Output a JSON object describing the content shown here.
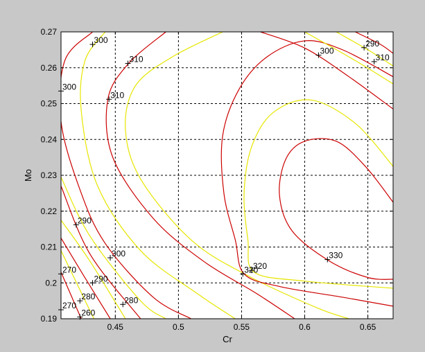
{
  "figure": {
    "background": "#c8c8c8",
    "plot_background": "#ffffff"
  },
  "chart_data": {
    "type": "contour",
    "title": "",
    "xlabel": "Cr",
    "ylabel": "Mo",
    "xlim": [
      0.407,
      0.67
    ],
    "ylim": [
      0.19,
      0.27
    ],
    "xticks": [
      0.45,
      0.5,
      0.55,
      0.6,
      0.65
    ],
    "xtick_labels": [
      "0.45",
      "0.5",
      "0.55",
      "0.6",
      "0.65"
    ],
    "yticks": [
      0.19,
      0.2,
      0.21,
      0.22,
      0.23,
      0.24,
      0.25,
      0.26,
      0.27
    ],
    "ytick_labels": [
      "0.19",
      "0.2",
      "0.21",
      "0.22",
      "0.23",
      "0.24",
      "0.25",
      "0.26",
      "0.27"
    ],
    "grid": true,
    "grid_style": "dashed",
    "colors": {
      "red_levels": "#cc0000",
      "yellow_levels": "#e6e600"
    },
    "series": [
      {
        "level": "270",
        "color": "#cc0000",
        "points": [
          [
            0.407,
            0.203
          ],
          [
            0.423,
            0.19
          ]
        ]
      },
      {
        "level": "",
        "color": "#e6e600",
        "points": [
          [
            0.407,
            0.209
          ],
          [
            0.433,
            0.19
          ]
        ]
      },
      {
        "level": "280",
        "color": "#cc0000",
        "points": [
          [
            0.407,
            0.2125
          ],
          [
            0.425,
            0.202
          ],
          [
            0.446,
            0.19
          ]
        ]
      },
      {
        "level": "",
        "color": "#e6e600",
        "points": [
          [
            0.407,
            0.2175
          ],
          [
            0.43,
            0.206
          ],
          [
            0.458,
            0.19
          ]
        ]
      },
      {
        "level": "290",
        "color": "#cc0000",
        "points": [
          [
            0.407,
            0.227
          ],
          [
            0.43,
            0.208
          ],
          [
            0.47,
            0.19
          ]
        ]
      },
      {
        "level": "",
        "color": "#e6e600",
        "points": [
          [
            0.407,
            0.2295
          ],
          [
            0.43,
            0.213
          ],
          [
            0.47,
            0.195
          ],
          [
            0.49,
            0.19
          ]
        ]
      },
      {
        "level": "300",
        "color": "#cc0000",
        "points": [
          [
            0.432,
            0.27
          ],
          [
            0.41,
            0.262
          ],
          [
            0.407,
            0.245
          ],
          [
            0.422,
            0.226
          ],
          [
            0.442,
            0.211
          ],
          [
            0.48,
            0.196
          ],
          [
            0.51,
            0.19
          ]
        ]
      },
      {
        "level": "",
        "color": "#e6e600",
        "points": [
          [
            0.442,
            0.27
          ],
          [
            0.426,
            0.262
          ],
          [
            0.423,
            0.248
          ],
          [
            0.436,
            0.227
          ],
          [
            0.47,
            0.209
          ],
          [
            0.515,
            0.197
          ],
          [
            0.545,
            0.19
          ]
        ]
      },
      {
        "level": "310",
        "color": "#cc0000",
        "points": [
          [
            0.49,
            0.27
          ],
          [
            0.46,
            0.261
          ],
          [
            0.444,
            0.251
          ],
          [
            0.448,
            0.235
          ],
          [
            0.48,
            0.218
          ],
          [
            0.52,
            0.206
          ],
          [
            0.562,
            0.197
          ],
          [
            0.592,
            0.19
          ]
        ]
      },
      {
        "level": "",
        "color": "#e6e600",
        "points": [
          [
            0.535,
            0.27
          ],
          [
            0.495,
            0.263
          ],
          [
            0.466,
            0.255
          ],
          [
            0.458,
            0.243
          ],
          [
            0.47,
            0.229
          ],
          [
            0.51,
            0.212
          ],
          [
            0.555,
            0.202
          ],
          [
            0.61,
            0.193
          ],
          [
            0.635,
            0.19
          ]
        ]
      },
      {
        "level": "320",
        "color": "#cc0000",
        "points": [
          [
            0.67,
            0.2575
          ],
          [
            0.63,
            0.265
          ],
          [
            0.6,
            0.2675
          ],
          [
            0.57,
            0.263
          ],
          [
            0.548,
            0.254
          ],
          [
            0.535,
            0.241
          ],
          [
            0.536,
            0.225
          ],
          [
            0.545,
            0.212
          ],
          [
            0.552,
            0.2025
          ],
          [
            0.58,
            0.199
          ],
          [
            0.63,
            0.196
          ],
          [
            0.67,
            0.1935
          ]
        ]
      },
      {
        "level": "",
        "color": "#e6e600",
        "points": [
          [
            0.67,
            0.2325
          ],
          [
            0.64,
            0.2445
          ],
          [
            0.605,
            0.251
          ],
          [
            0.575,
            0.2475
          ],
          [
            0.558,
            0.238
          ],
          [
            0.552,
            0.225
          ],
          [
            0.555,
            0.212
          ],
          [
            0.56,
            0.203
          ],
          [
            0.6,
            0.2005
          ],
          [
            0.67,
            0.1985
          ]
        ]
      },
      {
        "level": "330",
        "color": "#cc0000",
        "points": [
          [
            0.67,
            0.2225
          ],
          [
            0.648,
            0.2325
          ],
          [
            0.625,
            0.2395
          ],
          [
            0.6,
            0.2395
          ],
          [
            0.585,
            0.2345
          ],
          [
            0.58,
            0.2245
          ],
          [
            0.59,
            0.2145
          ],
          [
            0.62,
            0.206
          ],
          [
            0.65,
            0.2015
          ],
          [
            0.67,
            0.201
          ]
        ]
      },
      {
        "level": "",
        "color": "#e6e600",
        "points": [
          [
            0.6,
            0.27
          ],
          [
            0.64,
            0.262
          ],
          [
            0.67,
            0.2555
          ]
        ]
      },
      {
        "level": "300",
        "color": "#cc0000",
        "points": [
          [
            0.565,
            0.27
          ],
          [
            0.6,
            0.2655
          ],
          [
            0.635,
            0.2575
          ],
          [
            0.67,
            0.2485
          ]
        ]
      },
      {
        "level": "",
        "color": "#e6e600",
        "points": [
          [
            0.625,
            0.27
          ],
          [
            0.65,
            0.265
          ],
          [
            0.67,
            0.2605
          ]
        ]
      },
      {
        "level": "310",
        "color": "#cc0000",
        "points": [
          [
            0.64,
            0.27
          ],
          [
            0.66,
            0.2665
          ],
          [
            0.67,
            0.264
          ]
        ]
      }
    ],
    "labels": [
      {
        "text": "300",
        "x": 0.432,
        "y": 0.2665
      },
      {
        "text": "310",
        "x": 0.46,
        "y": 0.2612
      },
      {
        "text": "300",
        "x": 0.407,
        "y": 0.2535
      },
      {
        "text": "310",
        "x": 0.445,
        "y": 0.2512
      },
      {
        "text": "300",
        "x": 0.611,
        "y": 0.2635
      },
      {
        "text": "290",
        "x": 0.647,
        "y": 0.2656
      },
      {
        "text": "310",
        "x": 0.655,
        "y": 0.2617
      },
      {
        "text": "290",
        "x": 0.419,
        "y": 0.2162
      },
      {
        "text": "300",
        "x": 0.446,
        "y": 0.207
      },
      {
        "text": "270",
        "x": 0.407,
        "y": 0.2025
      },
      {
        "text": "290",
        "x": 0.432,
        "y": 0.2
      },
      {
        "text": "280",
        "x": 0.422,
        "y": 0.195
      },
      {
        "text": "280",
        "x": 0.456,
        "y": 0.194
      },
      {
        "text": "270",
        "x": 0.407,
        "y": 0.1925
      },
      {
        "text": "260",
        "x": 0.422,
        "y": 0.1905
      },
      {
        "text": "320",
        "x": 0.551,
        "y": 0.2025
      },
      {
        "text": "320",
        "x": 0.558,
        "y": 0.2035
      },
      {
        "text": "330",
        "x": 0.618,
        "y": 0.2065
      }
    ]
  }
}
